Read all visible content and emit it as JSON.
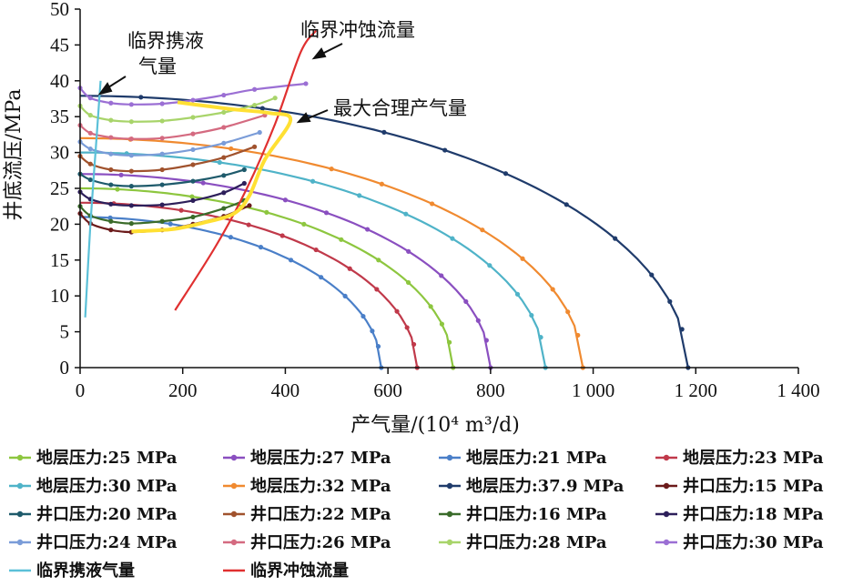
{
  "chart_data": {
    "type": "line",
    "xlabel": "产气量/(10⁴ m³/d)",
    "ylabel": "井底流压/MPa",
    "xlim": [
      0,
      1400
    ],
    "ylim": [
      0,
      50
    ],
    "xticks": [
      0,
      200,
      400,
      600,
      800,
      1000,
      1200,
      1400
    ],
    "xtick_labels": [
      "0",
      "200",
      "400",
      "600",
      "800",
      "1 000",
      "1 200",
      "1 400"
    ],
    "yticks": [
      0,
      5,
      10,
      15,
      20,
      25,
      30,
      35,
      40,
      45,
      50
    ],
    "grid": false,
    "legend_position": "bottom",
    "ipr_series": [
      {
        "name": "地层压力:25 MPa",
        "color": "#8dc63f",
        "pr": 25,
        "qmax": 727,
        "markers": true
      },
      {
        "name": "地层压力:27 MPa",
        "color": "#8a4fc0",
        "pr": 27,
        "qmax": 800,
        "markers": true
      },
      {
        "name": "地层压力:21 MPa",
        "color": "#4a7fc8",
        "pr": 21,
        "qmax": 587,
        "markers": true
      },
      {
        "name": "地层压力:23 MPa",
        "color": "#c0394a",
        "pr": 23,
        "qmax": 657,
        "markers": true
      },
      {
        "name": "地层压力:30 MPa",
        "color": "#4fb3c8",
        "pr": 30,
        "qmax": 907,
        "markers": true
      },
      {
        "name": "地层压力:32 MPa",
        "color": "#f08a30",
        "pr": 32,
        "qmax": 980,
        "markers": true
      },
      {
        "name": "地层压力:37.9 MPa",
        "color": "#1f3b6b",
        "pr": 37.9,
        "qmax": 1185,
        "markers": true
      }
    ],
    "tpr_series": [
      {
        "name": "井口压力:15 MPa",
        "color": "#6b1a1a",
        "points": [
          [
            0,
            21.5
          ],
          [
            20,
            20.1
          ],
          [
            60,
            19.2
          ],
          [
            100,
            18.9
          ],
          [
            160,
            19.2
          ],
          [
            220,
            20.0
          ],
          [
            280,
            21.1
          ],
          [
            330,
            22.6
          ]
        ]
      },
      {
        "name": "井口压力:20 MPa",
        "color": "#1e5a6b",
        "points": [
          [
            0,
            27.0
          ],
          [
            20,
            26.2
          ],
          [
            60,
            25.5
          ],
          [
            100,
            25.3
          ],
          [
            160,
            25.5
          ],
          [
            220,
            26.0
          ],
          [
            280,
            26.8
          ],
          [
            320,
            27.6
          ]
        ]
      },
      {
        "name": "井口压力:22 MPa",
        "color": "#a0522d",
        "points": [
          [
            0,
            29.5
          ],
          [
            20,
            28.4
          ],
          [
            60,
            27.6
          ],
          [
            100,
            27.4
          ],
          [
            160,
            27.6
          ],
          [
            220,
            28.3
          ],
          [
            280,
            29.3
          ],
          [
            340,
            30.8
          ]
        ]
      },
      {
        "name": "井口压力:16 MPa",
        "color": "#3a6b2a",
        "points": [
          [
            0,
            22.5
          ],
          [
            20,
            21.2
          ],
          [
            60,
            20.4
          ],
          [
            100,
            20.1
          ],
          [
            160,
            20.4
          ],
          [
            220,
            21.0
          ],
          [
            280,
            22.2
          ],
          [
            320,
            23.3
          ]
        ]
      },
      {
        "name": "井口压力:18 MPa",
        "color": "#2d1f5a",
        "points": [
          [
            0,
            24.5
          ],
          [
            20,
            23.5
          ],
          [
            60,
            22.8
          ],
          [
            100,
            22.6
          ],
          [
            160,
            22.7
          ],
          [
            220,
            23.3
          ],
          [
            280,
            24.4
          ],
          [
            320,
            25.7
          ]
        ]
      },
      {
        "name": "井口压力:24 MPa",
        "color": "#7a9cd8",
        "points": [
          [
            0,
            31.5
          ],
          [
            20,
            30.5
          ],
          [
            60,
            29.8
          ],
          [
            100,
            29.6
          ],
          [
            160,
            29.8
          ],
          [
            220,
            30.4
          ],
          [
            280,
            31.3
          ],
          [
            350,
            32.8
          ]
        ]
      },
      {
        "name": "井口压力:26 MPa",
        "color": "#d46a80",
        "points": [
          [
            0,
            33.8
          ],
          [
            20,
            32.7
          ],
          [
            60,
            32.1
          ],
          [
            100,
            31.9
          ],
          [
            160,
            32.0
          ],
          [
            220,
            32.6
          ],
          [
            280,
            33.5
          ],
          [
            360,
            35.2
          ]
        ]
      },
      {
        "name": "井口压力:28 MPa",
        "color": "#a8d46a",
        "points": [
          [
            0,
            36.5
          ],
          [
            20,
            35.2
          ],
          [
            60,
            34.5
          ],
          [
            100,
            34.3
          ],
          [
            160,
            34.4
          ],
          [
            220,
            34.9
          ],
          [
            280,
            35.6
          ],
          [
            340,
            36.6
          ],
          [
            380,
            37.6
          ]
        ]
      },
      {
        "name": "井口压力:30 MPa",
        "color": "#9b6fd4",
        "points": [
          [
            0,
            39.0
          ],
          [
            20,
            37.6
          ],
          [
            60,
            36.9
          ],
          [
            100,
            36.7
          ],
          [
            160,
            36.8
          ],
          [
            220,
            37.3
          ],
          [
            280,
            38.0
          ],
          [
            340,
            38.8
          ],
          [
            440,
            39.6
          ]
        ]
      }
    ],
    "boundary_series": [
      {
        "name": "临界携液气量",
        "color": "#5bc0d8",
        "points": [
          [
            10,
            7
          ],
          [
            20,
            20
          ],
          [
            30,
            30
          ],
          [
            40,
            40
          ]
        ],
        "in_legend": true
      },
      {
        "name": "临界冲蚀流量",
        "color": "#e03030",
        "points": [
          [
            185,
            8
          ],
          [
            265,
            17
          ],
          [
            325,
            25
          ],
          [
            380,
            34
          ],
          [
            430,
            44
          ],
          [
            460,
            47
          ]
        ],
        "in_legend": true
      },
      {
        "name": "最大合理产气量",
        "color": "#ffe033",
        "points": [
          [
            100,
            19
          ],
          [
            180,
            19.3
          ],
          [
            240,
            20.2
          ],
          [
            300,
            21.5
          ],
          [
            330,
            24
          ],
          [
            360,
            29
          ],
          [
            410,
            34.5
          ],
          [
            370,
            35.5
          ],
          [
            300,
            36
          ],
          [
            245,
            36.5
          ],
          [
            190,
            37
          ]
        ],
        "in_legend": false
      }
    ],
    "annotations": [
      {
        "text": "临界携液",
        "line2": "气量"
      },
      {
        "text": "临界冲蚀流量"
      },
      {
        "text": "最大合理产气量"
      }
    ]
  }
}
